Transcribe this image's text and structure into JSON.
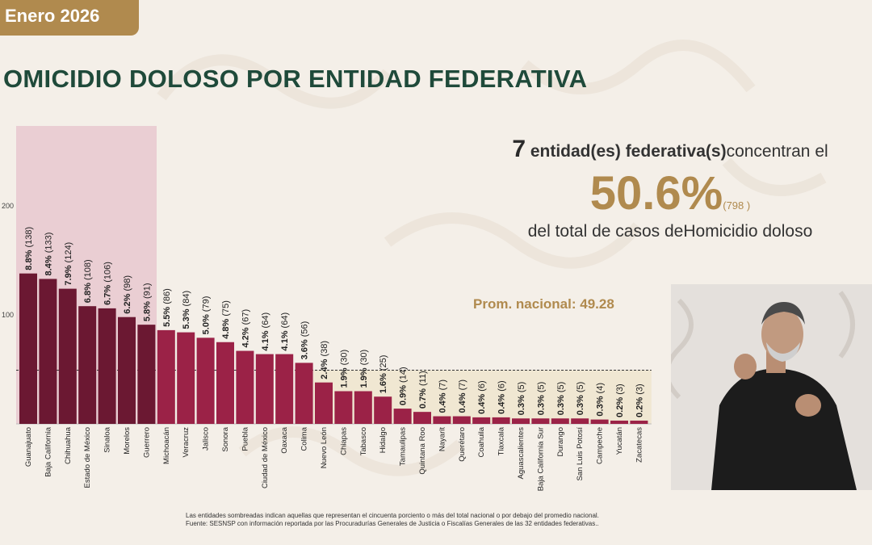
{
  "header": {
    "date_tag": "Enero 2026",
    "title": "OMICIDIO DOLOSO POR ENTIDAD FEDERATIVA"
  },
  "summary": {
    "count": "7",
    "line1_bold": "entidad(es) federativa(s)",
    "line1_rest": "concentran el",
    "percent": "50.6%",
    "cases": "(798 )",
    "line3": "del total de casos deHomicidio doloso"
  },
  "average": {
    "label": "Prom. nacional: 49.28",
    "value": 49.28
  },
  "footnote": {
    "line1": "Las entidades sombreadas indican aquellas que representan el cincuenta porciento o más del total nacional o por debajo del promedio nacional.",
    "line2": "Fuente: SESNSP con información reportada por las Procuradurías Generales de Justicia o Fiscalías Generales de las 32 entidades federativas.."
  },
  "colors": {
    "top_group": "#6b1832",
    "rest": "#9b2247",
    "accent": "#b08a4e",
    "title": "#1f4a3a"
  },
  "chart_data": {
    "type": "bar",
    "title": "OMICIDIO DOLOSO POR ENTIDAD FEDERATIVA",
    "y_ticks": [
      "100",
      "200"
    ],
    "ylim": [
      0,
      200
    ],
    "highlight_top_count": 7,
    "categories": [
      "Guanajuato",
      "Baja California",
      "Chihuahua",
      "Estado de México",
      "Sinaloa",
      "Morelos",
      "Guerrero",
      "Michoacán",
      "Veracruz",
      "Jalisco",
      "Sonora",
      "Puebla",
      "Ciudad de México",
      "Oaxaca",
      "Colima",
      "Nuevo León",
      "Chiapas",
      "Tabasco",
      "Hidalgo",
      "Tamaulipas",
      "Quintana Roo",
      "Nayarit",
      "Querétaro",
      "Coahuila",
      "Tlaxcala",
      "Aguascalientes",
      "Baja California Sur",
      "Durango",
      "San Luis Potosí",
      "Campeche",
      "Yucatán",
      "Zacatecas"
    ],
    "values": [
      138,
      133,
      124,
      108,
      106,
      98,
      91,
      86,
      84,
      79,
      75,
      67,
      64,
      64,
      56,
      38,
      30,
      30,
      25,
      14,
      11,
      7,
      7,
      6,
      6,
      5,
      5,
      5,
      5,
      4,
      3,
      3
    ],
    "pct_labels": [
      "8.8%",
      "8.4%",
      "7.9%",
      "6.8%",
      "6.7%",
      "6.2%",
      "5.8%",
      "5.5%",
      "5.3%",
      "5.0%",
      "4.8%",
      "4.2%",
      "4.1%",
      "4.1%",
      "3.6%",
      "2.4%",
      "1.9%",
      "1.9%",
      "1.6%",
      "0.9%",
      "0.7%",
      "0.4%",
      "0.4%",
      "0.4%",
      "0.4%",
      "0.3%",
      "0.3%",
      "0.3%",
      "0.3%",
      "0.3%",
      "0.2%",
      "0.2%"
    ],
    "count_labels": [
      "(138)",
      "(133)",
      "(124)",
      "(108)",
      "(106)",
      "(98)",
      "(91)",
      "(86)",
      "(84)",
      "(79)",
      "(75)",
      "(67)",
      "(64)",
      "(64)",
      "(56)",
      "(38)",
      "(30)",
      "(30)",
      "(25)",
      "(14)",
      "(11)",
      "(7)",
      "(7)",
      "(6)",
      "(6)",
      "(5)",
      "(5)",
      "(5)",
      "(5)",
      "(4)",
      "(3)",
      "(3)"
    ]
  }
}
